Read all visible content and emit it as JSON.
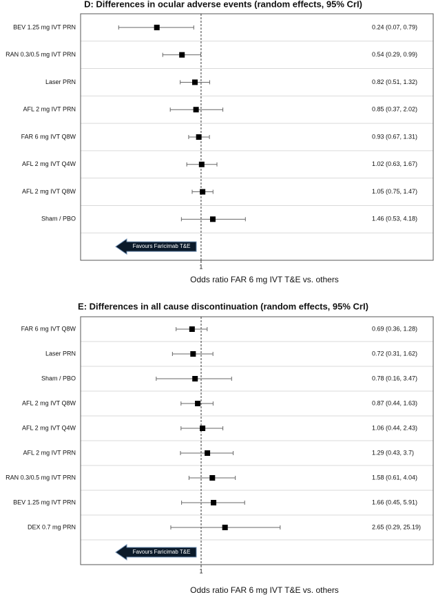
{
  "chart_data": [
    {
      "type": "forest",
      "title": "D: Differences in ocular adverse events (random effects, 95% CrI)",
      "categories": [
        "BEV 1.25 mg IVT PRN",
        "RAN 0.3/0.5 mg IVT PRN",
        "Laser PRN",
        "AFL 2 mg IVT PRN",
        "FAR 6 mg IVT Q8W",
        "AFL 2 mg IVT Q4W",
        "AFL 2 mg IVT Q8W",
        "Sham / PBO"
      ],
      "values": [
        0.24,
        0.54,
        0.82,
        0.85,
        0.93,
        1.02,
        1.05,
        1.46
      ],
      "lower": [
        0.07,
        0.29,
        0.51,
        0.37,
        0.67,
        0.63,
        0.75,
        0.53
      ],
      "upper": [
        0.79,
        0.99,
        1.32,
        2.02,
        1.31,
        1.67,
        1.47,
        4.18
      ],
      "value_labels": [
        "0.24 (0.07, 0.79)",
        "0.54 (0.29, 0.99)",
        "0.82 (0.51, 1.32)",
        "0.85 (0.37, 2.02)",
        "0.93 (0.67, 1.31)",
        "1.02 (0.63, 1.67)",
        "1.05 (0.75, 1.47)",
        "1.46 (0.53, 4.18)"
      ],
      "color": "#000000",
      "xlim": [
        0.0205,
        1790
      ],
      "xticks": [
        1
      ],
      "log_x": true,
      "reference_line": 1,
      "annotation": "Favours Faricimab T&E",
      "xlabel": "Odds ratio FAR 6 mg IVT T&E vs. others"
    },
    {
      "type": "forest",
      "title": "E: Differences in all cause discontinuation (random effects, 95% CrI)",
      "categories": [
        "FAR 6 mg IVT Q8W",
        "Laser PRN",
        "Sham / PBO",
        "AFL 2 mg IVT Q8W",
        "AFL 2 mg IVT Q4W",
        "AFL 2 mg IVT PRN",
        "RAN 0.3/0.5 mg IVT PRN",
        "BEV 1.25 mg IVT PRN",
        "DEX 0.7 mg PRN"
      ],
      "values": [
        0.69,
        0.72,
        0.78,
        0.87,
        1.06,
        1.29,
        1.58,
        1.66,
        2.65
      ],
      "lower": [
        0.36,
        0.31,
        0.16,
        0.44,
        0.44,
        0.43,
        0.61,
        0.45,
        0.29
      ],
      "upper": [
        1.28,
        1.62,
        3.47,
        1.63,
        2.43,
        3.7,
        4.04,
        5.91,
        25.19
      ],
      "value_labels": [
        "0.69 (0.36, 1.28)",
        "0.72 (0.31, 1.62)",
        "0.78 (0.16, 3.47)",
        "0.87 (0.44, 1.63)",
        "1.06 (0.44, 2.43)",
        "1.29 (0.43, 3.7)",
        "1.58 (0.61, 4.04)",
        "1.66 (0.45, 5.91)",
        "2.65 (0.29, 25.19)"
      ],
      "color": "#000000",
      "xlim": [
        0.0073,
        13000
      ],
      "xticks": [
        1
      ],
      "log_x": true,
      "reference_line": 1,
      "annotation": "Favours Faricimab T&E",
      "xlabel": "Odds ratio FAR 6 mg IVT T&E vs. others"
    }
  ]
}
